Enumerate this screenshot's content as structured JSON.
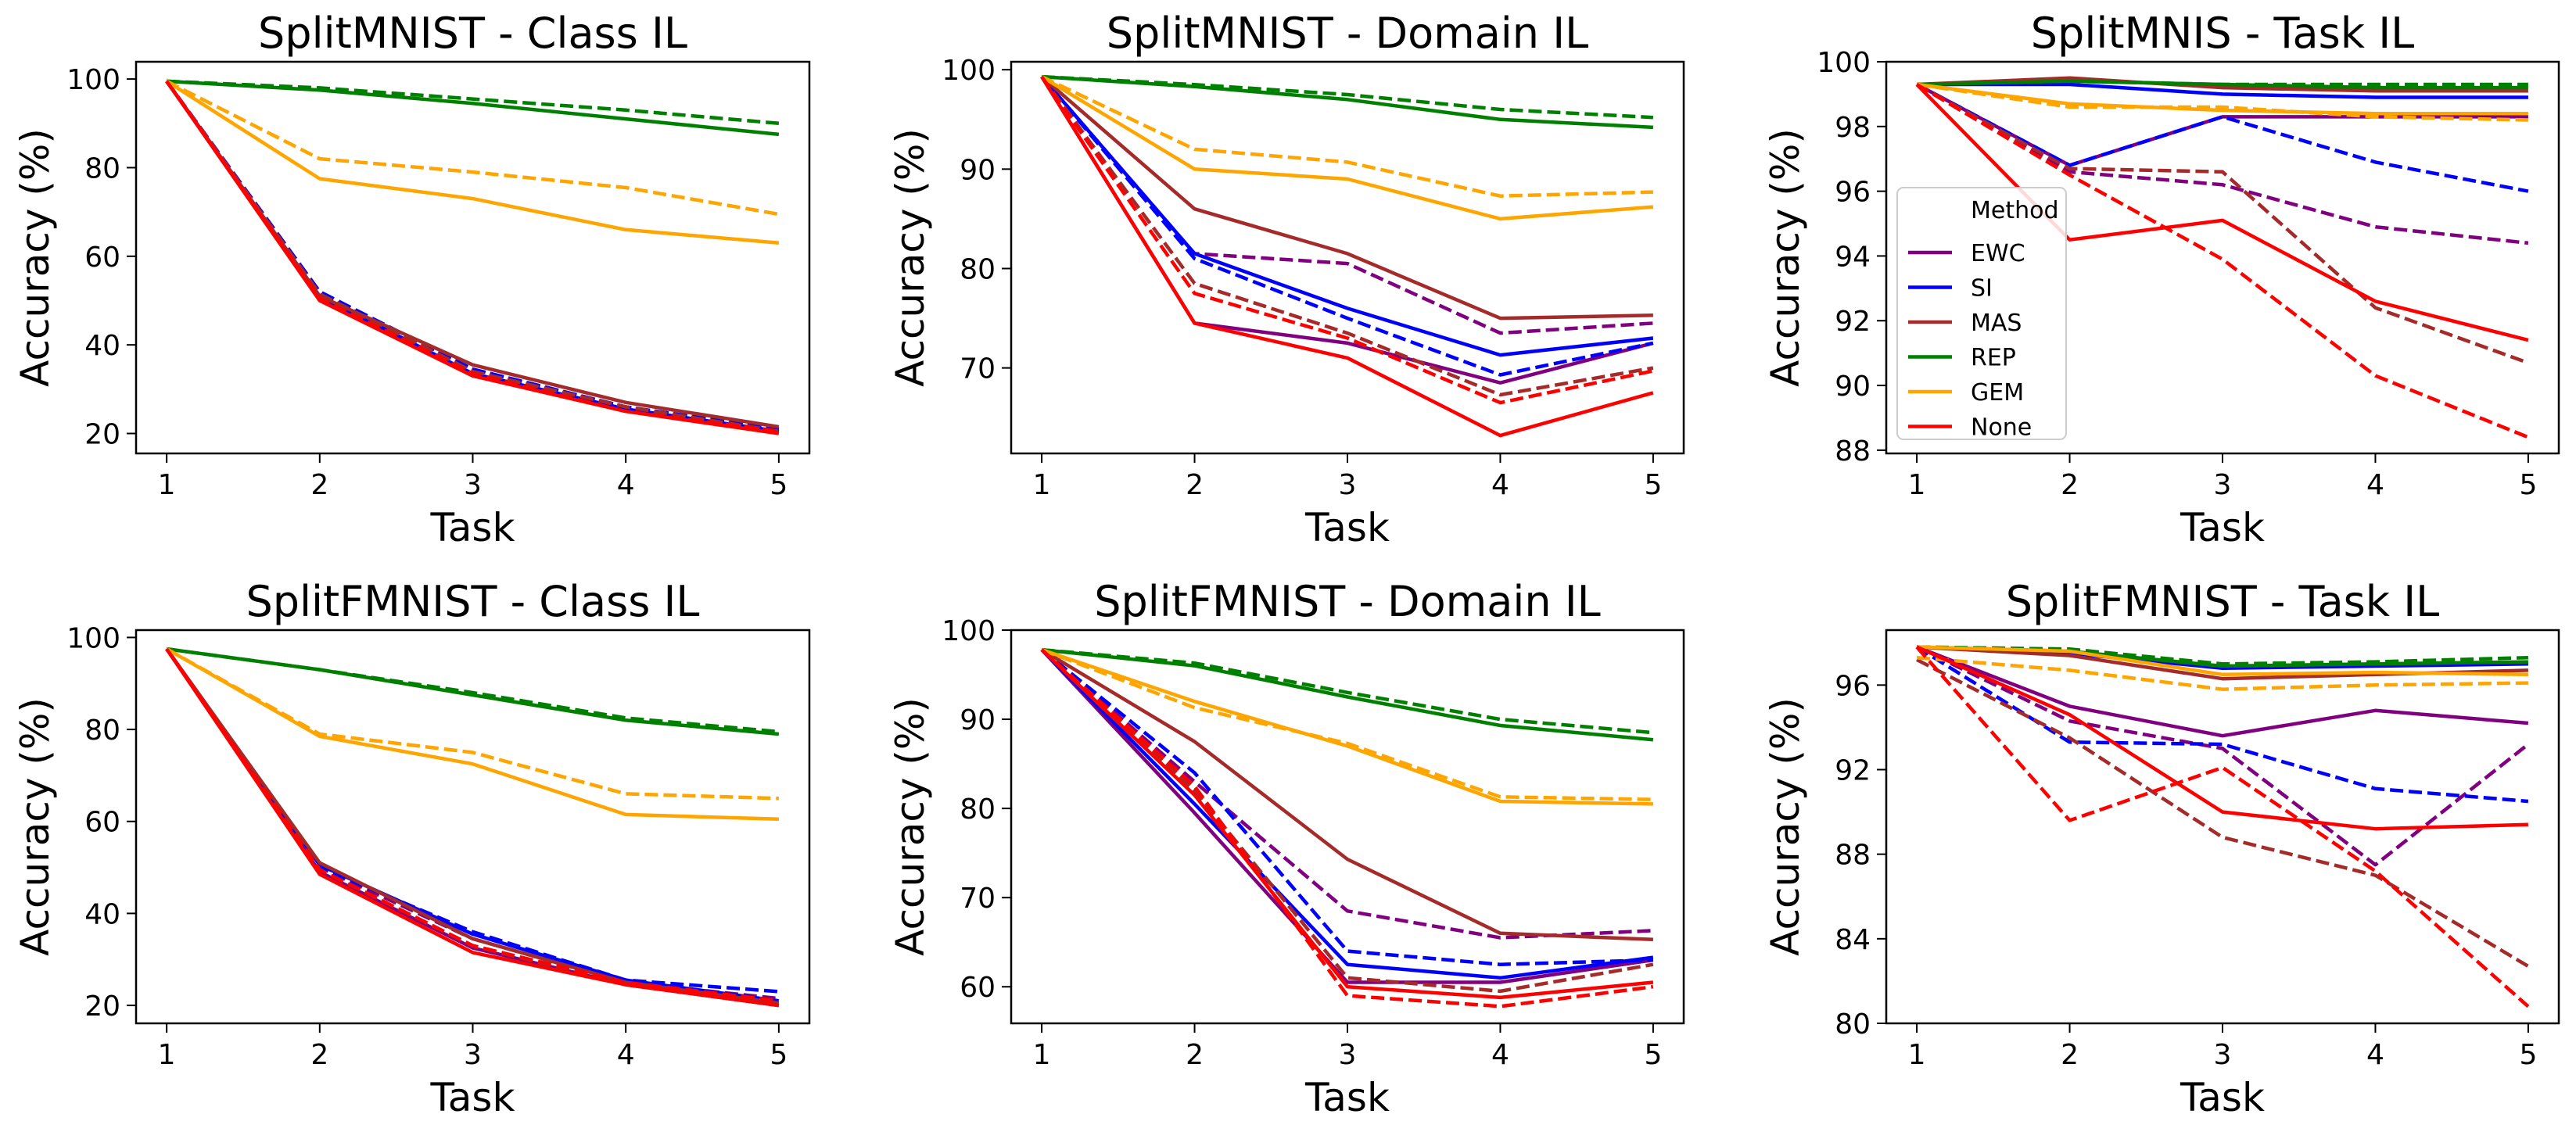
{
  "colors": {
    "EWC": "#800080",
    "SI": "#0000ff",
    "MAS": "#a52a2a",
    "REP": "#008000",
    "GEM": "#ffa500",
    "None": "#ff0000"
  },
  "legend": {
    "title": "Method",
    "entries": [
      "EWC",
      "SI",
      "MAS",
      "REP",
      "GEM",
      "None"
    ],
    "panel_index": 2,
    "placement": "center-left"
  },
  "line_styles": {
    "solid": "first variant (unlabeled)",
    "dashed": "second variant (unlabeled)"
  },
  "chart_data": [
    {
      "type": "line",
      "title": "SplitMNIST - Class IL",
      "xlabel": "Task",
      "ylabel": "Accuracy (%)",
      "x": [
        1,
        2,
        3,
        4,
        5
      ],
      "ylim": [
        15.5,
        103.9
      ],
      "yticks": [
        20,
        40,
        60,
        80,
        100
      ],
      "series": [
        {
          "method": "EWC",
          "style": "solid",
          "values": [
            99.5,
            50.5,
            33.5,
            25.5,
            20.5
          ]
        },
        {
          "method": "EWC",
          "style": "dashed",
          "values": [
            99.5,
            51.5,
            34.5,
            26.0,
            21.0
          ]
        },
        {
          "method": "SI",
          "style": "solid",
          "values": [
            99.5,
            51.0,
            33.5,
            25.5,
            20.5
          ]
        },
        {
          "method": "SI",
          "style": "dashed",
          "values": [
            99.5,
            52.0,
            34.5,
            26.0,
            21.0
          ]
        },
        {
          "method": "MAS",
          "style": "solid",
          "values": [
            99.5,
            51.0,
            35.5,
            27.0,
            21.5
          ]
        },
        {
          "method": "MAS",
          "style": "dashed",
          "values": [
            99.5,
            51.5,
            34.0,
            26.0,
            20.5
          ]
        },
        {
          "method": "REP",
          "style": "solid",
          "values": [
            99.5,
            97.5,
            94.5,
            91.0,
            87.5
          ]
        },
        {
          "method": "REP",
          "style": "dashed",
          "values": [
            99.5,
            98.0,
            95.5,
            93.0,
            90.0
          ]
        },
        {
          "method": "GEM",
          "style": "solid",
          "values": [
            99.5,
            77.5,
            73.0,
            66.0,
            63.0
          ]
        },
        {
          "method": "GEM",
          "style": "dashed",
          "values": [
            99.5,
            82.0,
            79.0,
            75.5,
            69.5
          ]
        },
        {
          "method": "None",
          "style": "solid",
          "values": [
            99.5,
            50.0,
            33.0,
            25.0,
            20.0
          ]
        },
        {
          "method": "None",
          "style": "dashed",
          "values": [
            99.5,
            50.5,
            33.5,
            25.0,
            20.5
          ]
        }
      ]
    },
    {
      "type": "line",
      "title": "SplitMNIST - Domain IL",
      "xlabel": "Task",
      "ylabel": "Accuracy (%)",
      "x": [
        1,
        2,
        3,
        4,
        5
      ],
      "ylim": [
        61.4,
        100.8
      ],
      "yticks": [
        70,
        80,
        90,
        100
      ],
      "series": [
        {
          "method": "EWC",
          "style": "solid",
          "values": [
            99.3,
            74.5,
            72.5,
            68.5,
            72.5
          ]
        },
        {
          "method": "EWC",
          "style": "dashed",
          "values": [
            99.3,
            81.5,
            80.5,
            73.5,
            74.5
          ]
        },
        {
          "method": "SI",
          "style": "solid",
          "values": [
            99.3,
            81.5,
            76.0,
            71.3,
            73.0
          ]
        },
        {
          "method": "SI",
          "style": "dashed",
          "values": [
            99.3,
            81.0,
            75.0,
            69.3,
            72.5
          ]
        },
        {
          "method": "MAS",
          "style": "solid",
          "values": [
            99.3,
            86.0,
            81.5,
            75.0,
            75.3
          ]
        },
        {
          "method": "MAS",
          "style": "dashed",
          "values": [
            99.3,
            78.5,
            73.5,
            67.3,
            70.0
          ]
        },
        {
          "method": "REP",
          "style": "solid",
          "values": [
            99.3,
            98.3,
            97.0,
            95.0,
            94.2
          ]
        },
        {
          "method": "REP",
          "style": "dashed",
          "values": [
            99.3,
            98.5,
            97.5,
            96.0,
            95.2
          ]
        },
        {
          "method": "GEM",
          "style": "solid",
          "values": [
            99.3,
            90.0,
            89.0,
            85.0,
            86.2
          ]
        },
        {
          "method": "GEM",
          "style": "dashed",
          "values": [
            99.3,
            92.0,
            90.7,
            87.3,
            87.7
          ]
        },
        {
          "method": "None",
          "style": "solid",
          "values": [
            99.3,
            74.5,
            71.0,
            63.2,
            67.5
          ]
        },
        {
          "method": "None",
          "style": "dashed",
          "values": [
            99.3,
            77.5,
            73.0,
            66.5,
            69.7
          ]
        }
      ]
    },
    {
      "type": "line",
      "title": "SplitMNIS - Task IL",
      "xlabel": "Task",
      "ylabel": "Accuracy (%)",
      "x": [
        1,
        2,
        3,
        4,
        5
      ],
      "ylim": [
        87.9,
        100.0
      ],
      "yticks": [
        88,
        90,
        92,
        94,
        96,
        98,
        100
      ],
      "series": [
        {
          "method": "EWC",
          "style": "solid",
          "values": [
            99.3,
            96.8,
            98.3,
            98.3,
            98.3
          ]
        },
        {
          "method": "EWC",
          "style": "dashed",
          "values": [
            99.3,
            96.6,
            96.2,
            94.9,
            94.4
          ]
        },
        {
          "method": "SI",
          "style": "solid",
          "values": [
            99.3,
            99.3,
            99.0,
            98.9,
            98.9
          ]
        },
        {
          "method": "SI",
          "style": "dashed",
          "values": [
            99.3,
            96.8,
            98.3,
            96.9,
            96.0
          ]
        },
        {
          "method": "MAS",
          "style": "solid",
          "values": [
            99.3,
            99.5,
            99.2,
            99.1,
            99.1
          ]
        },
        {
          "method": "MAS",
          "style": "dashed",
          "values": [
            99.3,
            96.7,
            96.6,
            92.4,
            90.7
          ]
        },
        {
          "method": "REP",
          "style": "solid",
          "values": [
            99.3,
            99.4,
            99.3,
            99.2,
            99.2
          ]
        },
        {
          "method": "REP",
          "style": "dashed",
          "values": [
            99.3,
            99.4,
            99.3,
            99.3,
            99.3
          ]
        },
        {
          "method": "GEM",
          "style": "solid",
          "values": [
            99.3,
            98.7,
            98.5,
            98.4,
            98.4
          ]
        },
        {
          "method": "GEM",
          "style": "dashed",
          "values": [
            99.3,
            98.6,
            98.6,
            98.3,
            98.2
          ]
        },
        {
          "method": "None",
          "style": "solid",
          "values": [
            99.3,
            94.5,
            95.1,
            92.6,
            91.4
          ]
        },
        {
          "method": "None",
          "style": "dashed",
          "values": [
            99.3,
            96.5,
            93.9,
            90.3,
            88.4
          ]
        }
      ]
    },
    {
      "type": "line",
      "title": "SplitFMNIST - Class IL",
      "xlabel": "Task",
      "ylabel": "Accuracy (%)",
      "x": [
        1,
        2,
        3,
        4,
        5
      ],
      "ylim": [
        16.1,
        101.6
      ],
      "yticks": [
        20,
        40,
        60,
        80,
        100
      ],
      "series": [
        {
          "method": "EWC",
          "style": "solid",
          "values": [
            97.5,
            49.0,
            32.5,
            24.5,
            20.0
          ]
        },
        {
          "method": "EWC",
          "style": "dashed",
          "values": [
            97.5,
            50.0,
            34.5,
            25.0,
            21.5
          ]
        },
        {
          "method": "SI",
          "style": "solid",
          "values": [
            97.5,
            50.5,
            35.5,
            25.5,
            21.0
          ]
        },
        {
          "method": "SI",
          "style": "dashed",
          "values": [
            97.5,
            50.0,
            36.0,
            25.5,
            23.0
          ]
        },
        {
          "method": "MAS",
          "style": "solid",
          "values": [
            97.5,
            51.0,
            34.5,
            25.0,
            20.5
          ]
        },
        {
          "method": "MAS",
          "style": "dashed",
          "values": [
            97.5,
            49.5,
            33.0,
            24.5,
            21.0
          ]
        },
        {
          "method": "REP",
          "style": "solid",
          "values": [
            97.5,
            93.0,
            87.5,
            82.0,
            79.0
          ]
        },
        {
          "method": "REP",
          "style": "dashed",
          "values": [
            97.5,
            93.0,
            88.0,
            82.5,
            79.5
          ]
        },
        {
          "method": "GEM",
          "style": "solid",
          "values": [
            97.5,
            78.5,
            72.5,
            61.5,
            60.5
          ]
        },
        {
          "method": "GEM",
          "style": "dashed",
          "values": [
            97.5,
            79.0,
            75.0,
            66.0,
            65.0
          ]
        },
        {
          "method": "None",
          "style": "solid",
          "values": [
            97.5,
            48.5,
            31.5,
            24.5,
            20.0
          ]
        },
        {
          "method": "None",
          "style": "dashed",
          "values": [
            97.5,
            49.5,
            33.0,
            25.0,
            21.0
          ]
        }
      ]
    },
    {
      "type": "line",
      "title": "SplitFMNIST - Domain IL",
      "xlabel": "Task",
      "ylabel": "Accuracy (%)",
      "x": [
        1,
        2,
        3,
        4,
        5
      ],
      "ylim": [
        55.9,
        100.0
      ],
      "yticks": [
        60,
        70,
        80,
        90,
        100
      ],
      "series": [
        {
          "method": "EWC",
          "style": "solid",
          "values": [
            97.8,
            79.5,
            60.5,
            60.5,
            63.0
          ]
        },
        {
          "method": "EWC",
          "style": "dashed",
          "values": [
            97.8,
            83.0,
            68.5,
            65.5,
            66.3
          ]
        },
        {
          "method": "SI",
          "style": "solid",
          "values": [
            97.8,
            80.5,
            62.5,
            61.0,
            63.3
          ]
        },
        {
          "method": "SI",
          "style": "dashed",
          "values": [
            97.8,
            84.0,
            64.0,
            62.5,
            63.0
          ]
        },
        {
          "method": "MAS",
          "style": "solid",
          "values": [
            97.8,
            87.5,
            74.3,
            66.0,
            65.3
          ]
        },
        {
          "method": "MAS",
          "style": "dashed",
          "values": [
            97.8,
            82.0,
            61.0,
            59.5,
            62.5
          ]
        },
        {
          "method": "REP",
          "style": "solid",
          "values": [
            97.8,
            96.0,
            92.5,
            89.3,
            87.7
          ]
        },
        {
          "method": "REP",
          "style": "dashed",
          "values": [
            97.8,
            96.3,
            93.0,
            90.0,
            88.5
          ]
        },
        {
          "method": "GEM",
          "style": "solid",
          "values": [
            97.8,
            92.0,
            87.0,
            80.8,
            80.5
          ]
        },
        {
          "method": "GEM",
          "style": "dashed",
          "values": [
            97.8,
            91.3,
            87.3,
            81.3,
            81.0
          ]
        },
        {
          "method": "None",
          "style": "solid",
          "values": [
            97.8,
            81.5,
            60.0,
            58.8,
            60.5
          ]
        },
        {
          "method": "None",
          "style": "dashed",
          "values": [
            97.8,
            82.5,
            59.0,
            57.8,
            60.0
          ]
        }
      ]
    },
    {
      "type": "line",
      "title": "SplitFMNIST - Task IL",
      "xlabel": "Task",
      "ylabel": "Accuracy (%)",
      "x": [
        1,
        2,
        3,
        4,
        5
      ],
      "ylim": [
        80.0,
        98.6
      ],
      "yticks": [
        80,
        84,
        88,
        92,
        96
      ],
      "series": [
        {
          "method": "EWC",
          "style": "solid",
          "values": [
            97.8,
            95.0,
            93.6,
            94.8,
            94.2
          ]
        },
        {
          "method": "EWC",
          "style": "dashed",
          "values": [
            97.8,
            94.3,
            93.0,
            87.5,
            93.2
          ]
        },
        {
          "method": "SI",
          "style": "solid",
          "values": [
            97.8,
            97.5,
            96.8,
            96.9,
            97.0
          ]
        },
        {
          "method": "SI",
          "style": "dashed",
          "values": [
            97.8,
            93.3,
            93.2,
            91.1,
            90.5
          ]
        },
        {
          "method": "MAS",
          "style": "solid",
          "values": [
            97.8,
            97.4,
            96.3,
            96.5,
            96.7
          ]
        },
        {
          "method": "MAS",
          "style": "dashed",
          "values": [
            97.2,
            93.5,
            88.8,
            87.0,
            82.7
          ]
        },
        {
          "method": "REP",
          "style": "solid",
          "values": [
            97.8,
            97.6,
            96.9,
            97.0,
            97.1
          ]
        },
        {
          "method": "REP",
          "style": "dashed",
          "values": [
            97.8,
            97.7,
            97.0,
            97.1,
            97.3
          ]
        },
        {
          "method": "GEM",
          "style": "solid",
          "values": [
            97.8,
            97.6,
            96.5,
            96.6,
            96.5
          ]
        },
        {
          "method": "GEM",
          "style": "dashed",
          "values": [
            97.3,
            96.7,
            95.8,
            96.0,
            96.1
          ]
        },
        {
          "method": "None",
          "style": "solid",
          "values": [
            97.8,
            94.6,
            90.0,
            89.2,
            89.4
          ]
        },
        {
          "method": "None",
          "style": "dashed",
          "values": [
            97.8,
            89.6,
            92.1,
            87.2,
            80.8
          ]
        }
      ]
    }
  ]
}
